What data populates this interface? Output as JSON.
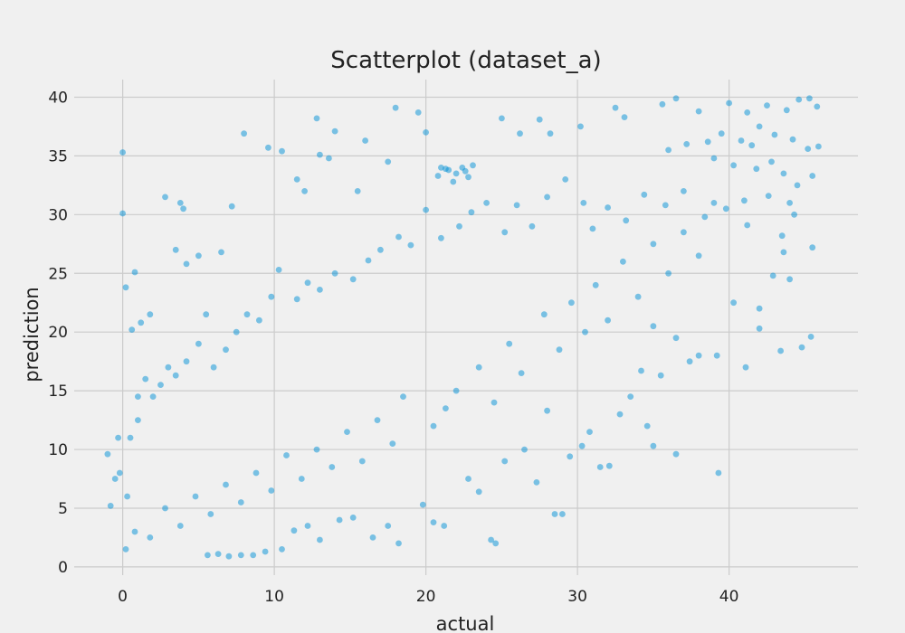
{
  "chart_data": {
    "type": "scatter",
    "title": "Scatterplot (dataset_a)",
    "xlabel": "actual",
    "ylabel": "prediction",
    "xlim": [
      -3.2,
      48.5
    ],
    "ylim": [
      -0.7,
      41.5
    ],
    "xticks": [
      0,
      10,
      20,
      30,
      40
    ],
    "yticks": [
      0,
      5,
      10,
      15,
      20,
      25,
      30,
      35,
      40
    ],
    "grid": true,
    "marker_color": "#008fd5",
    "background": "#f0f0f0",
    "series": [
      {
        "points": [
          [
            0.0,
            35.3
          ],
          [
            0.0,
            30.1
          ],
          [
            0.2,
            23.8
          ],
          [
            0.8,
            25.1
          ],
          [
            0.6,
            20.2
          ],
          [
            1.2,
            20.8
          ],
          [
            1.8,
            21.5
          ],
          [
            2.8,
            31.5
          ],
          [
            3.8,
            31.0
          ],
          [
            4.0,
            30.5
          ],
          [
            3.5,
            27.0
          ],
          [
            4.2,
            25.8
          ],
          [
            5.0,
            26.5
          ],
          [
            6.5,
            26.8
          ],
          [
            7.2,
            30.7
          ],
          [
            8.0,
            36.9
          ],
          [
            9.6,
            35.7
          ],
          [
            10.5,
            35.4
          ],
          [
            13.0,
            35.1
          ],
          [
            14.0,
            37.1
          ],
          [
            12.8,
            38.2
          ],
          [
            13.6,
            34.8
          ],
          [
            11.5,
            33.0
          ],
          [
            12.0,
            32.0
          ],
          [
            18.0,
            39.1
          ],
          [
            19.5,
            38.7
          ],
          [
            20.0,
            37.0
          ],
          [
            16.0,
            36.3
          ],
          [
            15.5,
            32.0
          ],
          [
            17.5,
            34.5
          ],
          [
            21.0,
            34.0
          ],
          [
            21.5,
            33.8
          ],
          [
            22.0,
            33.5
          ],
          [
            22.4,
            34.0
          ],
          [
            22.8,
            33.2
          ],
          [
            21.8,
            32.8
          ],
          [
            23.1,
            34.2
          ],
          [
            21.3,
            33.9
          ],
          [
            22.6,
            33.7
          ],
          [
            20.8,
            33.3
          ],
          [
            25.0,
            38.2
          ],
          [
            26.2,
            36.9
          ],
          [
            27.5,
            38.1
          ],
          [
            28.2,
            36.9
          ],
          [
            30.2,
            37.5
          ],
          [
            32.5,
            39.1
          ],
          [
            33.1,
            38.3
          ],
          [
            35.6,
            39.4
          ],
          [
            36.5,
            39.9
          ],
          [
            38.0,
            38.8
          ],
          [
            40.0,
            39.5
          ],
          [
            41.2,
            38.7
          ],
          [
            42.5,
            39.3
          ],
          [
            43.8,
            38.9
          ],
          [
            44.6,
            39.8
          ],
          [
            45.3,
            39.9
          ],
          [
            45.8,
            39.2
          ],
          [
            42.0,
            37.5
          ],
          [
            43.0,
            36.8
          ],
          [
            44.2,
            36.4
          ],
          [
            45.2,
            35.6
          ],
          [
            45.9,
            35.8
          ],
          [
            39.5,
            36.9
          ],
          [
            38.6,
            36.2
          ],
          [
            40.8,
            36.3
          ],
          [
            41.5,
            35.9
          ],
          [
            37.2,
            36.0
          ],
          [
            36.0,
            35.5
          ],
          [
            39.0,
            34.8
          ],
          [
            40.3,
            34.2
          ],
          [
            41.8,
            33.9
          ],
          [
            42.8,
            34.5
          ],
          [
            43.6,
            33.5
          ],
          [
            44.5,
            32.5
          ],
          [
            45.5,
            33.3
          ],
          [
            44.0,
            31.0
          ],
          [
            42.6,
            31.6
          ],
          [
            41.0,
            31.2
          ],
          [
            39.8,
            30.5
          ],
          [
            38.4,
            29.8
          ],
          [
            37.0,
            32.0
          ],
          [
            35.8,
            30.8
          ],
          [
            34.4,
            31.7
          ],
          [
            33.2,
            29.5
          ],
          [
            32.0,
            30.6
          ],
          [
            31.0,
            28.8
          ],
          [
            30.4,
            31.0
          ],
          [
            29.2,
            33.0
          ],
          [
            28.0,
            31.5
          ],
          [
            27.0,
            29.0
          ],
          [
            26.0,
            30.8
          ],
          [
            25.2,
            28.5
          ],
          [
            24.0,
            31.0
          ],
          [
            23.0,
            30.2
          ],
          [
            22.2,
            29.0
          ],
          [
            21.0,
            28.0
          ],
          [
            20.0,
            30.4
          ],
          [
            19.0,
            27.4
          ],
          [
            18.2,
            28.1
          ],
          [
            17.0,
            27.0
          ],
          [
            16.2,
            26.1
          ],
          [
            15.2,
            24.5
          ],
          [
            14.0,
            25.0
          ],
          [
            13.0,
            23.6
          ],
          [
            12.2,
            24.2
          ],
          [
            11.5,
            22.8
          ],
          [
            10.3,
            25.3
          ],
          [
            9.8,
            23.0
          ],
          [
            9.0,
            21.0
          ],
          [
            8.2,
            21.5
          ],
          [
            7.5,
            20.0
          ],
          [
            6.8,
            18.5
          ],
          [
            6.0,
            17.0
          ],
          [
            5.5,
            21.5
          ],
          [
            5.0,
            19.0
          ],
          [
            4.2,
            17.5
          ],
          [
            3.5,
            16.3
          ],
          [
            3.0,
            17.0
          ],
          [
            2.5,
            15.5
          ],
          [
            2.0,
            14.5
          ],
          [
            1.5,
            16.0
          ],
          [
            1.0,
            12.5
          ],
          [
            1.0,
            14.5
          ],
          [
            0.5,
            11.0
          ],
          [
            -0.3,
            11.0
          ],
          [
            -1.0,
            9.6
          ],
          [
            -0.5,
            7.5
          ],
          [
            -0.8,
            5.2
          ],
          [
            -0.2,
            8.0
          ],
          [
            0.3,
            6.0
          ],
          [
            43.5,
            28.2
          ],
          [
            44.0,
            24.5
          ],
          [
            45.4,
            19.6
          ],
          [
            44.8,
            18.7
          ],
          [
            43.4,
            18.4
          ],
          [
            42.0,
            20.3
          ],
          [
            41.1,
            17.0
          ],
          [
            40.3,
            22.5
          ],
          [
            39.2,
            18.0
          ],
          [
            38.0,
            18.0
          ],
          [
            37.4,
            17.5
          ],
          [
            36.5,
            19.5
          ],
          [
            35.0,
            20.5
          ],
          [
            35.5,
            16.3
          ],
          [
            34.2,
            16.7
          ],
          [
            33.5,
            14.5
          ],
          [
            32.8,
            13.0
          ],
          [
            31.5,
            8.5
          ],
          [
            30.3,
            10.3
          ],
          [
            29.5,
            9.4
          ],
          [
            28.5,
            4.5
          ],
          [
            29.0,
            4.5
          ],
          [
            27.3,
            7.2
          ],
          [
            28.0,
            13.3
          ],
          [
            26.5,
            10.0
          ],
          [
            25.2,
            9.0
          ],
          [
            24.3,
            2.3
          ],
          [
            24.6,
            2.0
          ],
          [
            23.5,
            6.4
          ],
          [
            22.8,
            7.5
          ],
          [
            21.2,
            3.5
          ],
          [
            20.5,
            3.8
          ],
          [
            19.8,
            5.3
          ],
          [
            18.2,
            2.0
          ],
          [
            17.5,
            3.5
          ],
          [
            16.5,
            2.5
          ],
          [
            15.2,
            4.2
          ],
          [
            14.3,
            4.0
          ],
          [
            13.0,
            2.3
          ],
          [
            12.2,
            3.5
          ],
          [
            11.3,
            3.1
          ],
          [
            10.5,
            1.5
          ],
          [
            9.4,
            1.3
          ],
          [
            8.6,
            1.0
          ],
          [
            7.8,
            1.0
          ],
          [
            7.0,
            0.9
          ],
          [
            6.3,
            1.1
          ],
          [
            5.6,
            1.0
          ],
          [
            36.5,
            9.6
          ],
          [
            39.3,
            8.0
          ],
          [
            35.0,
            10.3
          ],
          [
            32.1,
            8.6
          ],
          [
            34.6,
            12.0
          ],
          [
            30.8,
            11.5
          ],
          [
            42.0,
            22.0
          ],
          [
            43.6,
            26.8
          ],
          [
            45.5,
            27.2
          ],
          [
            42.9,
            24.8
          ],
          [
            44.3,
            30.0
          ],
          [
            41.2,
            29.1
          ],
          [
            20.5,
            12.0
          ],
          [
            21.3,
            13.5
          ],
          [
            22.0,
            15.0
          ],
          [
            23.5,
            17.0
          ],
          [
            24.5,
            14.0
          ],
          [
            25.5,
            19.0
          ],
          [
            26.3,
            16.5
          ],
          [
            27.8,
            21.5
          ],
          [
            28.8,
            18.5
          ],
          [
            29.6,
            22.5
          ],
          [
            30.5,
            20.0
          ],
          [
            31.2,
            24.0
          ],
          [
            32.0,
            21.0
          ],
          [
            33.0,
            26.0
          ],
          [
            34.0,
            23.0
          ],
          [
            35.0,
            27.5
          ],
          [
            36.0,
            25.0
          ],
          [
            37.0,
            28.5
          ],
          [
            38.0,
            26.5
          ],
          [
            39.0,
            31.0
          ],
          [
            18.5,
            14.5
          ],
          [
            17.8,
            10.5
          ],
          [
            16.8,
            12.5
          ],
          [
            15.8,
            9.0
          ],
          [
            14.8,
            11.5
          ],
          [
            13.8,
            8.5
          ],
          [
            12.8,
            10.0
          ],
          [
            11.8,
            7.5
          ],
          [
            10.8,
            9.5
          ],
          [
            9.8,
            6.5
          ],
          [
            8.8,
            8.0
          ],
          [
            7.8,
            5.5
          ],
          [
            6.8,
            7.0
          ],
          [
            5.8,
            4.5
          ],
          [
            4.8,
            6.0
          ],
          [
            3.8,
            3.5
          ],
          [
            2.8,
            5.0
          ],
          [
            1.8,
            2.5
          ],
          [
            0.8,
            3.0
          ],
          [
            0.2,
            1.5
          ]
        ]
      }
    ]
  }
}
